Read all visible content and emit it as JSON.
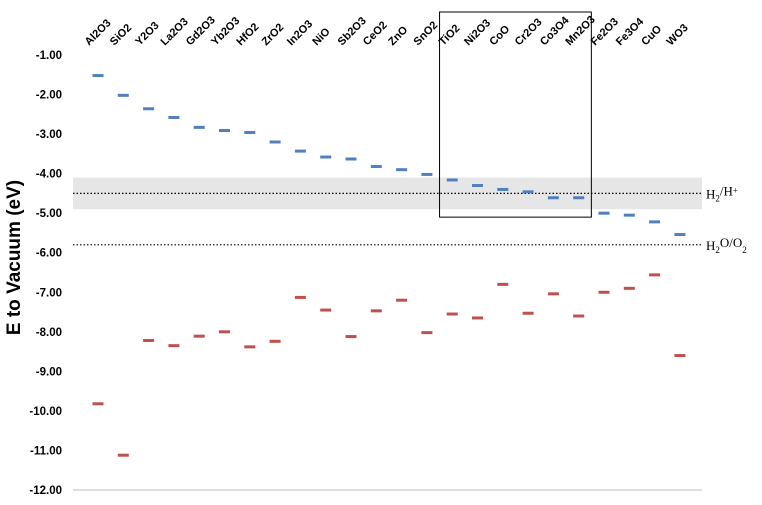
{
  "chart_data": {
    "type": "scatter",
    "categories": [
      "Al2O3",
      "SiO2",
      "Y2O3",
      "La2O3",
      "Gd2O3",
      "Yb2O3",
      "HfO2",
      "ZrO2",
      "In2O3",
      "NiO",
      "Sb2O3",
      "CeO2",
      "ZnO",
      "SnO2",
      "TiO2",
      "Ni2O3",
      "CoO",
      "Cr2O3",
      "Co3O4",
      "Mn2O3",
      "Fe2O3",
      "Fe3O4",
      "CuO",
      "WO3"
    ],
    "series": [
      {
        "color": "#4f81bd",
        "values": [
          -1.52,
          -2.02,
          -2.36,
          -2.58,
          -2.83,
          -2.91,
          -2.96,
          -3.2,
          -3.43,
          -3.58,
          -3.63,
          -3.82,
          -3.9,
          -4.02,
          -4.16,
          -4.3,
          -4.4,
          -4.46,
          -4.61,
          -4.61,
          -5.0,
          -5.05,
          -5.22,
          -5.54
        ]
      },
      {
        "color": "#c0504d",
        "values": [
          -9.82,
          -11.12,
          -8.22,
          -8.35,
          -8.11,
          -8.0,
          -8.38,
          -8.24,
          -7.13,
          -7.45,
          -8.12,
          -7.47,
          -7.2,
          -8.02,
          -7.55,
          -7.65,
          -6.8,
          -7.53,
          -7.04,
          -7.6,
          -7.0,
          -6.9,
          -6.56,
          -8.6
        ]
      }
    ],
    "ylabel": "E to Vacuum (eV)",
    "ylim": [
      -12,
      -1
    ],
    "yticks": [
      "-1.00",
      "-2.00",
      "-3.00",
      "-4.00",
      "-5.00",
      "-6.00",
      "-7.00",
      "-8.00",
      "-9.00",
      "-10.00",
      "-11.00",
      "-12.00"
    ],
    "reference_lines": [
      {
        "y": -4.5,
        "label_base": "H",
        "label_sub": "2",
        "label_mid": "/H",
        "label_sup": "+"
      },
      {
        "y": -5.8,
        "label_base": "H",
        "label_sub": "2",
        "label_mid": "O/O",
        "label_sub2": "2"
      }
    ],
    "band": {
      "from": -4.1,
      "to": -4.9,
      "color": "#e6e6e6"
    },
    "highlight_box": {
      "from_category": "TiO2",
      "to_category": "Mn2O3"
    },
    "grid": false
  }
}
